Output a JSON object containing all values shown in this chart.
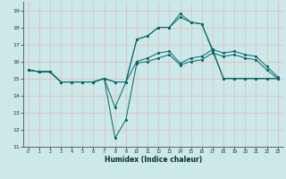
{
  "title": "",
  "xlabel": "Humidex (Indice chaleur)",
  "ylabel": "",
  "bg_color": "#cce8e8",
  "grid_color_pink": "#e0b8b8",
  "line_color": "#006868",
  "xlim": [
    -0.5,
    23.5
  ],
  "ylim": [
    11,
    19.5
  ],
  "yticks": [
    11,
    12,
    13,
    14,
    15,
    16,
    17,
    18,
    19
  ],
  "xticks": [
    0,
    1,
    2,
    3,
    4,
    5,
    6,
    7,
    8,
    9,
    10,
    11,
    12,
    13,
    14,
    15,
    16,
    17,
    18,
    19,
    20,
    21,
    22,
    23
  ],
  "series": [
    {
      "x": [
        0,
        1,
        2,
        3,
        4,
        5,
        6,
        7,
        8,
        9,
        10,
        11,
        12,
        13,
        14,
        15,
        16,
        17,
        18,
        19,
        20,
        21,
        22,
        23
      ],
      "y": [
        15.5,
        15.4,
        15.4,
        14.8,
        14.8,
        14.8,
        14.8,
        15.0,
        11.5,
        12.6,
        15.9,
        16.0,
        16.2,
        16.4,
        15.8,
        16.0,
        16.1,
        16.5,
        16.3,
        16.4,
        16.2,
        16.1,
        15.5,
        15.0
      ]
    },
    {
      "x": [
        0,
        1,
        2,
        3,
        4,
        5,
        6,
        7,
        8,
        9,
        10,
        11,
        12,
        13,
        14,
        15,
        16,
        17,
        18,
        19,
        20,
        21,
        22,
        23
      ],
      "y": [
        15.5,
        15.4,
        15.4,
        14.8,
        14.8,
        14.8,
        14.8,
        15.0,
        13.3,
        14.8,
        16.0,
        16.2,
        16.5,
        16.6,
        15.9,
        16.2,
        16.3,
        16.7,
        16.5,
        16.6,
        16.4,
        16.3,
        15.7,
        15.1
      ]
    },
    {
      "x": [
        0,
        1,
        2,
        3,
        4,
        5,
        6,
        7,
        8,
        9,
        10,
        11,
        12,
        13,
        14,
        15,
        16,
        17,
        18,
        19,
        20,
        21,
        22,
        23
      ],
      "y": [
        15.5,
        15.4,
        15.4,
        14.8,
        14.8,
        14.8,
        14.8,
        15.0,
        14.8,
        14.8,
        17.3,
        17.5,
        18.0,
        18.0,
        18.6,
        18.3,
        18.2,
        16.6,
        15.0,
        15.0,
        15.0,
        15.0,
        15.0,
        15.0
      ]
    },
    {
      "x": [
        0,
        1,
        2,
        3,
        4,
        5,
        6,
        7,
        8,
        9,
        10,
        11,
        12,
        13,
        14,
        15,
        16,
        17,
        18,
        19,
        20,
        21,
        22,
        23
      ],
      "y": [
        15.5,
        15.4,
        15.4,
        14.8,
        14.8,
        14.8,
        14.8,
        15.0,
        14.8,
        14.8,
        17.3,
        17.5,
        18.0,
        18.0,
        18.8,
        18.3,
        18.2,
        16.7,
        15.0,
        15.0,
        15.0,
        15.0,
        15.0,
        15.0
      ]
    }
  ]
}
